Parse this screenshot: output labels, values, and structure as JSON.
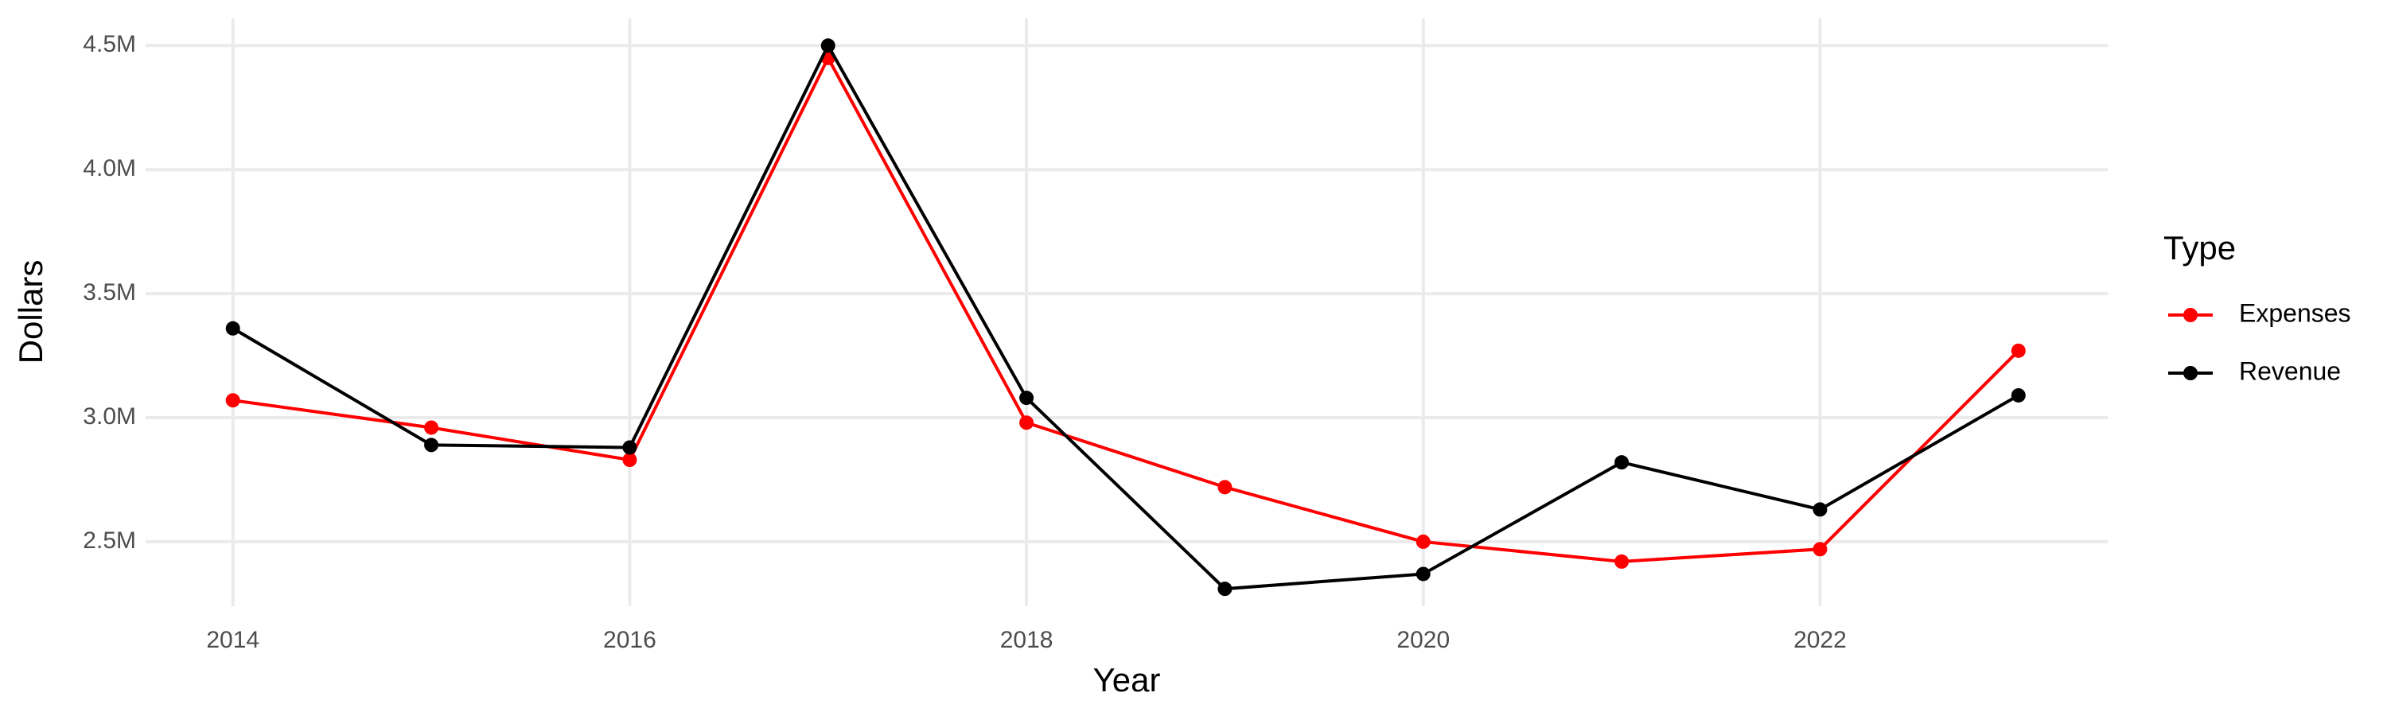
{
  "chart_data": {
    "type": "line",
    "x_label": "Year",
    "y_label": "Dollars",
    "legend_title": "Type",
    "legend": "right",
    "grid": true,
    "x": [
      2014,
      2015,
      2016,
      2017,
      2018,
      2019,
      2020,
      2021,
      2022,
      2023
    ],
    "series": [
      {
        "name": "Expenses",
        "color": "#ff0000",
        "values": [
          3070000,
          2960000,
          2830000,
          4450000,
          2980000,
          2720000,
          2500000,
          2420000,
          2470000,
          3270000
        ]
      },
      {
        "name": "Revenue",
        "color": "#000000",
        "values": [
          3360000,
          2890000,
          2880000,
          4500000,
          3080000,
          2310000,
          2370000,
          2820000,
          2630000,
          3090000
        ]
      }
    ],
    "xlim": [
      2013.56,
      2023.45
    ],
    "xticks": [
      2014,
      2016,
      2018,
      2020,
      2022
    ],
    "ylim": [
      2240000,
      4610000
    ],
    "yticks": [
      {
        "value": 2500000,
        "label": "2.5M"
      },
      {
        "value": 3000000,
        "label": "3.0M"
      },
      {
        "value": 3500000,
        "label": "3.5M"
      },
      {
        "value": 4000000,
        "label": "4.0M"
      },
      {
        "value": 4500000,
        "label": "4.5M"
      }
    ]
  }
}
